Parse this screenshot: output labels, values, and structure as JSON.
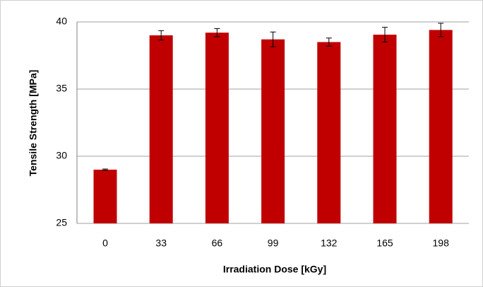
{
  "chart_data": {
    "type": "bar",
    "xlabel": "Irradiation Dose [kGy]",
    "ylabel": "Tensile Strength [MPa]",
    "categories": [
      "0",
      "33",
      "66",
      "99",
      "132",
      "165",
      "198"
    ],
    "values": [
      29.0,
      39.0,
      39.2,
      38.7,
      38.5,
      39.05,
      39.4
    ],
    "errors": [
      0.05,
      0.35,
      0.3,
      0.55,
      0.3,
      0.55,
      0.5
    ],
    "color": "#c00000",
    "ylim": [
      25,
      40
    ],
    "yticks": [
      25,
      30,
      35,
      40
    ],
    "grid": true
  }
}
